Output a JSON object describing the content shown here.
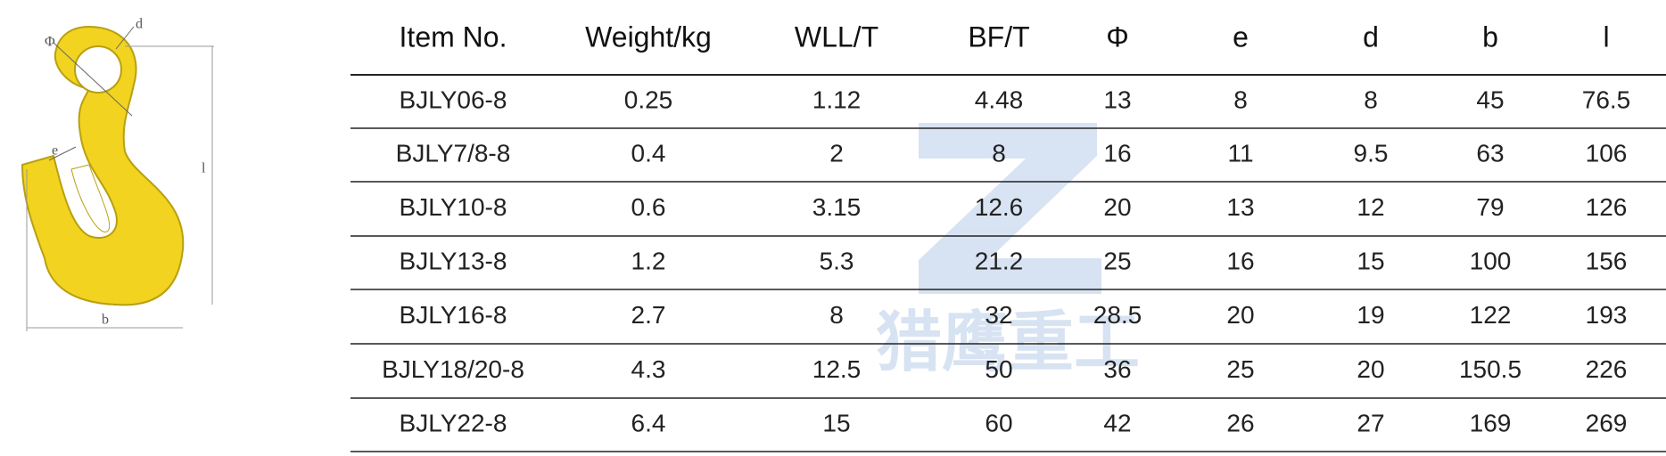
{
  "diagram": {
    "labels": {
      "d": "d",
      "phi": "Φ",
      "e": "e",
      "l": "l",
      "b": "b"
    }
  },
  "watermark": "猎鹰重工",
  "table": {
    "header": [
      "Item No.",
      "Weight/kg",
      "WLL/T",
      "BF/T",
      "Φ",
      "e",
      "d",
      "b",
      "l"
    ],
    "rows": [
      [
        "BJLY06-8",
        "0.25",
        "1.12",
        "4.48",
        "13",
        "8",
        "8",
        "45",
        "76.5"
      ],
      [
        "BJLY7/8-8",
        "0.4",
        "2",
        "8",
        "16",
        "11",
        "9.5",
        "63",
        "106"
      ],
      [
        "BJLY10-8",
        "0.6",
        "3.15",
        "12.6",
        "20",
        "13",
        "12",
        "79",
        "126"
      ],
      [
        "BJLY13-8",
        "1.2",
        "5.3",
        "21.2",
        "25",
        "16",
        "15",
        "100",
        "156"
      ],
      [
        "BJLY16-8",
        "2.7",
        "8",
        "32",
        "28.5",
        "20",
        "19",
        "122",
        "193"
      ],
      [
        "BJLY18/20-8",
        "4.3",
        "12.5",
        "50",
        "36",
        "25",
        "20",
        "150.5",
        "226"
      ],
      [
        "BJLY22-8",
        "6.4",
        "15",
        "60",
        "42",
        "26",
        "27",
        "169",
        "269"
      ]
    ]
  }
}
